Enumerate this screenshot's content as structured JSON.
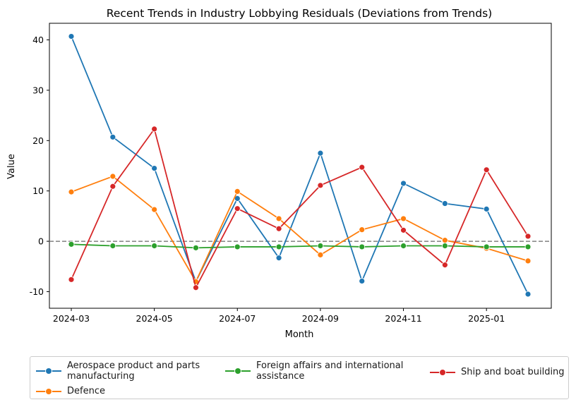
{
  "chart_data": {
    "type": "line",
    "title": "Recent Trends in Industry Lobbying Residuals (Deviations from Trends)",
    "xlabel": "Month",
    "ylabel": "Value",
    "x": [
      "2024-03",
      "2024-04",
      "2024-05",
      "2024-06",
      "2024-07",
      "2024-08",
      "2024-09",
      "2024-10",
      "2024-11",
      "2024-12",
      "2025-01",
      "2025-02"
    ],
    "x_ticks": [
      "2024-03",
      "2024-05",
      "2024-07",
      "2024-09",
      "2024-11",
      "2025-01"
    ],
    "y_ticks": [
      -10,
      0,
      10,
      20,
      30,
      40
    ],
    "ylim": [
      -13.3,
      43.3
    ],
    "reference_line": 0,
    "grid": false,
    "legend_placement": "bottom, outside plot, 3 columns",
    "series": [
      {
        "name": "Aerospace product and parts manufacturing",
        "color": "#1f77b4",
        "values": [
          40.7,
          20.7,
          14.5,
          -8.0,
          8.5,
          -3.3,
          17.5,
          -7.9,
          11.5,
          7.5,
          6.4,
          -10.5
        ]
      },
      {
        "name": "Defence",
        "color": "#ff7f0e",
        "values": [
          9.8,
          12.9,
          6.3,
          -8.0,
          9.9,
          4.5,
          -2.7,
          2.3,
          4.5,
          0.2,
          -1.4,
          -3.9
        ]
      },
      {
        "name": "Foreign affairs and international assistance",
        "color": "#2ca02c",
        "values": [
          -0.6,
          -0.9,
          -0.9,
          -1.3,
          -1.1,
          -1.1,
          -0.9,
          -1.1,
          -0.9,
          -0.9,
          -1.1,
          -1.1
        ]
      },
      {
        "name": "Ship and boat building",
        "color": "#d62728",
        "values": [
          -7.6,
          10.9,
          22.3,
          -9.2,
          6.5,
          2.5,
          11.1,
          14.7,
          2.2,
          -4.7,
          14.2,
          1.0
        ]
      }
    ]
  }
}
